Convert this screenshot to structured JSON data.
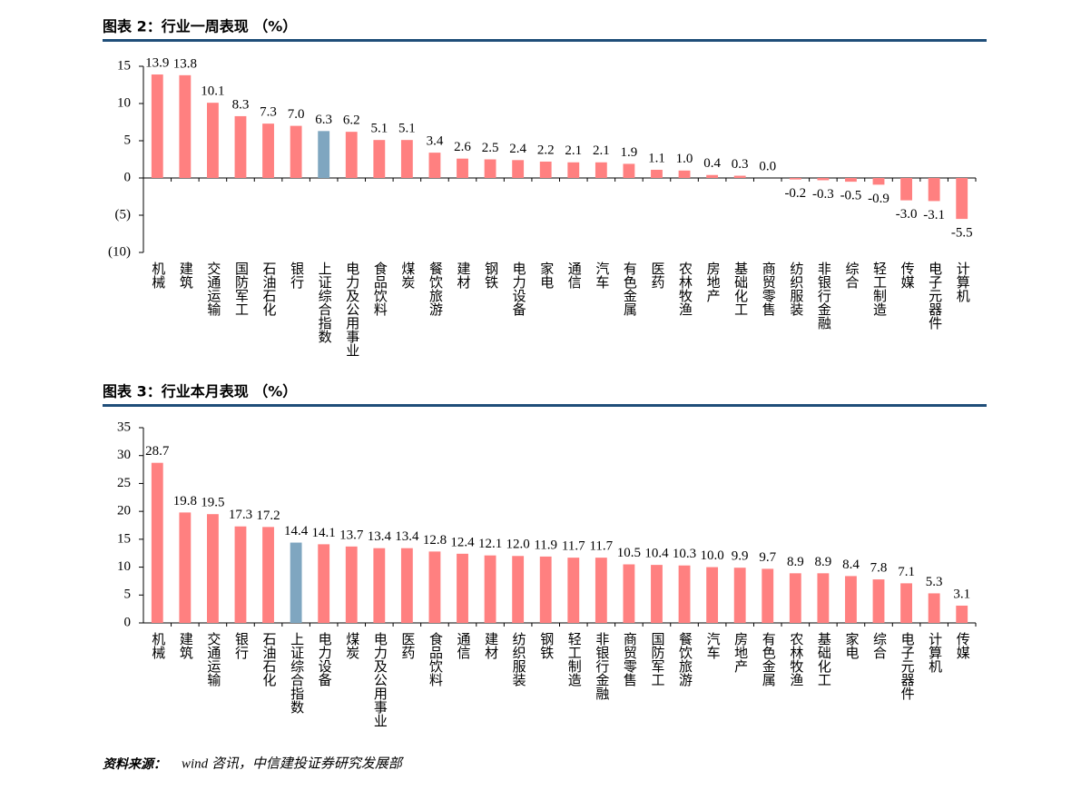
{
  "chart_data": [
    {
      "type": "bar",
      "title": "图表 2：行业一周表现 （%）",
      "categories": [
        "机械",
        "建筑",
        "交通运输",
        "国防军工",
        "石油石化",
        "银行",
        "上证综合指数",
        "电力及公用事业",
        "食品饮料",
        "煤炭",
        "餐饮旅游",
        "建材",
        "钢铁",
        "电力设备",
        "家电",
        "通信",
        "汽车",
        "有色金属",
        "医药",
        "农林牧渔",
        "房地产",
        "基础化工",
        "商贸零售",
        "纺织服装",
        "非银行金融",
        "综合",
        "轻工制造",
        "传媒",
        "电子元器件",
        "计算机"
      ],
      "values": [
        13.9,
        13.8,
        10.1,
        8.3,
        7.3,
        7.0,
        6.3,
        6.2,
        5.1,
        5.1,
        3.4,
        2.6,
        2.5,
        2.4,
        2.2,
        2.1,
        2.1,
        1.9,
        1.1,
        1.0,
        0.4,
        0.3,
        0.0,
        -0.2,
        -0.3,
        -0.5,
        -0.9,
        -3.0,
        -3.1,
        -5.5
      ],
      "value_labels": [
        "13.9",
        "13.8",
        "10.1",
        "8.3",
        "7.3",
        "7.0",
        "6.3",
        "6.2",
        "5.1",
        "5.1",
        "3.4",
        "2.6",
        "2.5",
        "2.4",
        "2.2",
        "2.1",
        "2.1",
        "1.9",
        "1.1",
        "1.0",
        "0.4",
        "0.3",
        "0.0",
        "-0.2",
        "-0.3",
        "-0.5",
        "-0.9",
        "-3.0",
        "-3.1",
        "-5.5"
      ],
      "colors": [
        "#ff8080",
        "#ff8080",
        "#ff8080",
        "#ff8080",
        "#ff8080",
        "#ff8080",
        "#7fa6c0",
        "#ff8080",
        "#ff8080",
        "#ff8080",
        "#ff8080",
        "#ff8080",
        "#ff8080",
        "#ff8080",
        "#ff8080",
        "#ff8080",
        "#ff8080",
        "#ff8080",
        "#ff8080",
        "#ff8080",
        "#ff8080",
        "#ff8080",
        "#ff8080",
        "#ff8080",
        "#ff8080",
        "#ff8080",
        "#ff8080",
        "#ff8080",
        "#ff8080",
        "#ff8080"
      ],
      "ylim": [
        -10,
        15
      ],
      "yticks": [
        {
          "value": -10,
          "label": "(10)"
        },
        {
          "value": -5,
          "label": "(5)"
        },
        0,
        5,
        10,
        15
      ],
      "negative_label_color": "#e00000"
    },
    {
      "type": "bar",
      "title": "图表 3：行业本月表现 （%）",
      "categories": [
        "机械",
        "建筑",
        "交通运输",
        "银行",
        "石油石化",
        "上证综合指数",
        "电力设备",
        "煤炭",
        "电力及公用事业",
        "医药",
        "食品饮料",
        "通信",
        "建材",
        "纺织服装",
        "钢铁",
        "轻工制造",
        "非银行金融",
        "商贸零售",
        "国防军工",
        "餐饮旅游",
        "汽车",
        "房地产",
        "有色金属",
        "农林牧渔",
        "基础化工",
        "家电",
        "综合",
        "电子元器件",
        "计算机",
        "传媒"
      ],
      "values": [
        28.7,
        19.8,
        19.5,
        17.3,
        17.2,
        14.4,
        14.1,
        13.7,
        13.4,
        13.4,
        12.8,
        12.4,
        12.1,
        12.0,
        11.9,
        11.7,
        11.7,
        10.5,
        10.4,
        10.3,
        10.0,
        9.9,
        9.7,
        8.9,
        8.9,
        8.4,
        7.8,
        7.1,
        5.3,
        3.1
      ],
      "value_labels": [
        "28.7",
        "19.8",
        "19.5",
        "17.3",
        "17.2",
        "14.4",
        "14.1",
        "13.7",
        "13.4",
        "13.4",
        "12.8",
        "12.4",
        "12.1",
        "12.0",
        "11.9",
        "11.7",
        "11.7",
        "10.5",
        "10.4",
        "10.3",
        "10.0",
        "9.9",
        "9.7",
        "8.9",
        "8.9",
        "8.4",
        "7.8",
        "7.1",
        "5.3",
        "3.1"
      ],
      "colors": [
        "#ff8080",
        "#ff8080",
        "#ff8080",
        "#ff8080",
        "#ff8080",
        "#7fa6c0",
        "#ff8080",
        "#ff8080",
        "#ff8080",
        "#ff8080",
        "#ff8080",
        "#ff8080",
        "#ff8080",
        "#ff8080",
        "#ff8080",
        "#ff8080",
        "#ff8080",
        "#ff8080",
        "#ff8080",
        "#ff8080",
        "#ff8080",
        "#ff8080",
        "#ff8080",
        "#ff8080",
        "#ff8080",
        "#ff8080",
        "#ff8080",
        "#ff8080",
        "#ff8080",
        "#ff8080"
      ],
      "ylim": [
        0,
        35
      ],
      "yticks": [
        0,
        5,
        10,
        15,
        20,
        25,
        30,
        35
      ]
    }
  ],
  "source_label": "资料来源：",
  "source_text": "wind 咨讯，中信建投证券研究发展部"
}
